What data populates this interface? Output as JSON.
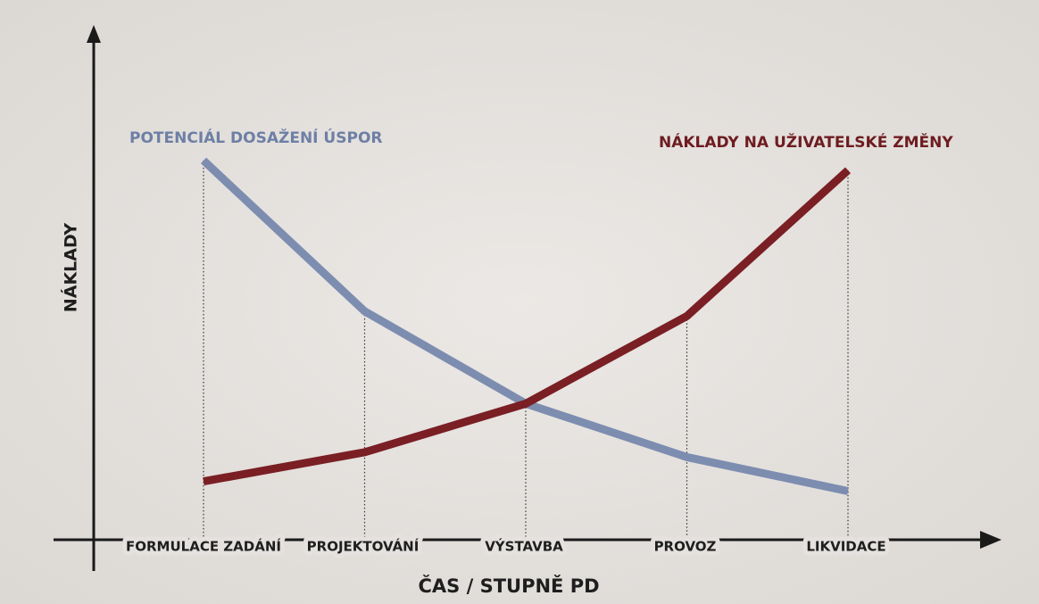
{
  "chart_data": {
    "type": "line",
    "y_label": "NÁKLADY",
    "x_label": "ČAS / STUPNĚ PD",
    "categories": [
      "FORMULACE ZADÁNÍ",
      "PROJEKTOVÁNÍ",
      "VÝSTAVBA",
      "PROVOZ",
      "LIKVIDACE"
    ],
    "series": [
      {
        "name": "POTENCIÁL DOSAŽENÍ ÚSPOR",
        "color": "#7d8db0",
        "values": [
          78,
          47,
          28,
          17,
          10
        ]
      },
      {
        "name": "NÁKLADY NA UŽIVATELSKÉ ZMĚNY",
        "color": "#7a1f24",
        "values": [
          12,
          18,
          28,
          46,
          76
        ]
      }
    ],
    "ylim": [
      0,
      100
    ]
  }
}
